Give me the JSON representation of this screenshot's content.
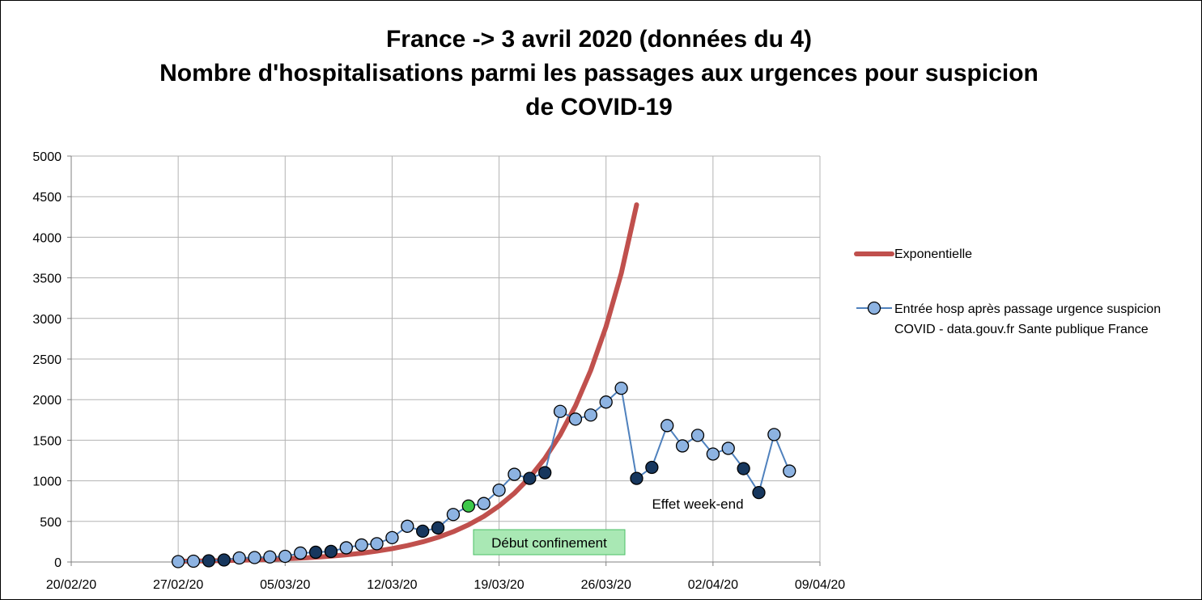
{
  "chart_data": {
    "type": "line",
    "title_lines": [
      "France -> 3 avril 2020 (données du 4)",
      "Nombre d'hospitalisations parmi les passages aux urgences pour suspicion",
      "de COVID-19"
    ],
    "xlabel": "",
    "ylabel": "",
    "xlim": [
      "2020-02-20",
      "2020-04-09"
    ],
    "ylim": [
      0,
      5000
    ],
    "x_ticks": [
      "20/02/20",
      "27/02/20",
      "05/03/20",
      "12/03/20",
      "19/03/20",
      "26/03/20",
      "02/04/20",
      "09/04/20"
    ],
    "y_ticks": [
      "0",
      "500",
      "1000",
      "1500",
      "2000",
      "2500",
      "3000",
      "3500",
      "4000",
      "4500",
      "5000"
    ],
    "grid": true,
    "legend_position": "right",
    "series": [
      {
        "name": "Exponentielle",
        "color": "#c0504d",
        "style": "thick-line",
        "x": [
          "2020-02-27",
          "2020-02-28",
          "2020-02-29",
          "2020-03-01",
          "2020-03-02",
          "2020-03-03",
          "2020-03-04",
          "2020-03-05",
          "2020-03-06",
          "2020-03-07",
          "2020-03-08",
          "2020-03-09",
          "2020-03-10",
          "2020-03-11",
          "2020-03-12",
          "2020-03-13",
          "2020-03-14",
          "2020-03-15",
          "2020-03-16",
          "2020-03-17",
          "2020-03-18",
          "2020-03-19",
          "2020-03-20",
          "2020-03-21",
          "2020-03-22",
          "2020-03-23",
          "2020-03-24",
          "2020-03-25",
          "2020-03-26",
          "2020-03-27",
          "2020-03-28"
        ],
        "values": [
          9,
          11,
          14,
          17,
          21,
          26,
          32,
          39,
          48,
          59,
          72,
          89,
          109,
          134,
          164,
          202,
          248,
          304,
          373,
          458,
          562,
          690,
          847,
          1040,
          1276,
          1567,
          1924,
          2361,
          2898,
          3558,
          4400
        ]
      },
      {
        "name": "Entrée hosp après passage urgence suspicion COVID - data.gouv.fr Sante publique France",
        "color": "#4f81bd",
        "marker_fill": "#8db3e2",
        "weekend_marker_fill": "#17375e",
        "highlight_marker_fill": "#3cc84a",
        "x": [
          "2020-02-27",
          "2020-02-28",
          "2020-02-29",
          "2020-03-01",
          "2020-03-02",
          "2020-03-03",
          "2020-03-04",
          "2020-03-05",
          "2020-03-06",
          "2020-03-07",
          "2020-03-08",
          "2020-03-09",
          "2020-03-10",
          "2020-03-11",
          "2020-03-12",
          "2020-03-13",
          "2020-03-14",
          "2020-03-15",
          "2020-03-16",
          "2020-03-17",
          "2020-03-18",
          "2020-03-19",
          "2020-03-20",
          "2020-03-21",
          "2020-03-22",
          "2020-03-23",
          "2020-03-24",
          "2020-03-25",
          "2020-03-26",
          "2020-03-27",
          "2020-03-28",
          "2020-03-29",
          "2020-03-30",
          "2020-03-31",
          "2020-04-01",
          "2020-04-02",
          "2020-04-03",
          "2020-04-04",
          "2020-04-05",
          "2020-04-06",
          "2020-04-07"
        ],
        "values": [
          5,
          10,
          15,
          25,
          50,
          55,
          62,
          70,
          110,
          120,
          130,
          175,
          210,
          225,
          300,
          440,
          380,
          420,
          585,
          690,
          720,
          885,
          1080,
          1030,
          1100,
          1855,
          1760,
          1810,
          1970,
          2140,
          1030,
          1165,
          1680,
          1430,
          1560,
          1330,
          1400,
          1150,
          855,
          1570,
          1120
        ],
        "marker_types": [
          "n",
          "n",
          "w",
          "w",
          "n",
          "n",
          "n",
          "n",
          "n",
          "w",
          "w",
          "n",
          "n",
          "n",
          "n",
          "n",
          "w",
          "w",
          "n",
          "g",
          "n",
          "n",
          "n",
          "w",
          "w",
          "n",
          "n",
          "n",
          "n",
          "n",
          "w",
          "w",
          "n",
          "n",
          "n",
          "n",
          "n",
          "w",
          "w",
          "n",
          "n"
        ]
      }
    ],
    "annotations": [
      {
        "text": "Début confinement",
        "box_fill": "#a9e8b4",
        "box_border": "#4bbf66"
      },
      {
        "text": "Effet week-end"
      }
    ]
  }
}
